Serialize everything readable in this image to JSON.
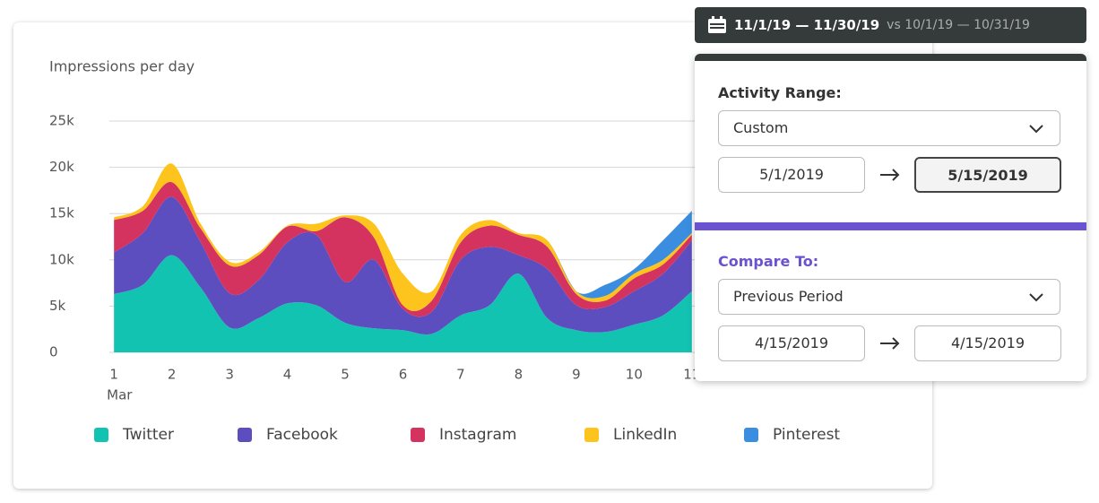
{
  "chart_data": {
    "type": "stacked-area",
    "title": "Impressions per day",
    "x": [
      1,
      1.5,
      2,
      2.5,
      3,
      3.5,
      4,
      4.5,
      5,
      5.5,
      6,
      6.5,
      7,
      7.5,
      8,
      8.5,
      9,
      9.5,
      10,
      10.5,
      11
    ],
    "x_month": "Mar",
    "series": [
      {
        "name": "Twitter",
        "color": "#12c3b1",
        "values": [
          6.3,
          7.3,
          10.5,
          7,
          2.7,
          3.7,
          5.3,
          5.1,
          3.2,
          2.6,
          2.4,
          2,
          4,
          5.1,
          8.5,
          3.7,
          2.4,
          2.2,
          3,
          4,
          6.6
        ]
      },
      {
        "name": "Facebook",
        "color": "#5d4ec0",
        "values": [
          4.5,
          5.6,
          6.3,
          4.9,
          3.7,
          4.1,
          6.6,
          7.6,
          4.4,
          7.4,
          2.3,
          2.4,
          6,
          6.3,
          2,
          5.3,
          2.7,
          2.7,
          3.6,
          4.5,
          5.5
        ]
      },
      {
        "name": "Instagram",
        "color": "#d5335f",
        "values": [
          3.5,
          2.4,
          1.6,
          1.5,
          3,
          2.7,
          1.7,
          0.4,
          7,
          2.4,
          0.4,
          1.2,
          1.9,
          2.3,
          2.2,
          2.4,
          1.2,
          0.7,
          1.4,
          1,
          0.6
        ]
      },
      {
        "name": "LinkedIn",
        "color": "#fcc41c",
        "values": [
          0.3,
          0.5,
          2,
          0.5,
          0.4,
          0.3,
          0.1,
          0.8,
          0.2,
          1.5,
          3.4,
          1,
          0.8,
          0.6,
          0.2,
          0.7,
          0.3,
          0.5,
          0.5,
          0.5,
          0.2
        ]
      },
      {
        "name": "Pinterest",
        "color": "#3b8ddf",
        "values": [
          0,
          0,
          0,
          0,
          0,
          0,
          0,
          0,
          0,
          0,
          0,
          0,
          0,
          0,
          0,
          0,
          0,
          1.2,
          0.5,
          2.1,
          2.4
        ]
      }
    ],
    "xlim": [
      0.92,
      14.85
    ],
    "xticks": [
      1,
      2,
      3,
      4,
      5,
      6,
      7,
      8,
      9,
      10,
      11
    ],
    "ylim": [
      0,
      25
    ],
    "yticks": [
      0,
      {
        "value": 5,
        "label": "5k"
      },
      {
        "value": 10,
        "label": "10k"
      },
      {
        "value": 15,
        "label": "15k"
      },
      {
        "value": 20,
        "label": "20k"
      },
      {
        "value": 25,
        "label": "25k"
      }
    ],
    "grid": true
  },
  "date_bar": {
    "range": "11/1/19 — 11/30/19",
    "compare": "vs 10/1/19 — 10/31/19"
  },
  "popover": {
    "activity_label": "Activity Range:",
    "activity_select": "Custom",
    "activity_start": "5/1/2019",
    "activity_end": "5/15/2019",
    "compare_label": "Compare To:",
    "compare_select": "Previous Period",
    "compare_start": "4/15/2019",
    "compare_end": "4/15/2019"
  }
}
